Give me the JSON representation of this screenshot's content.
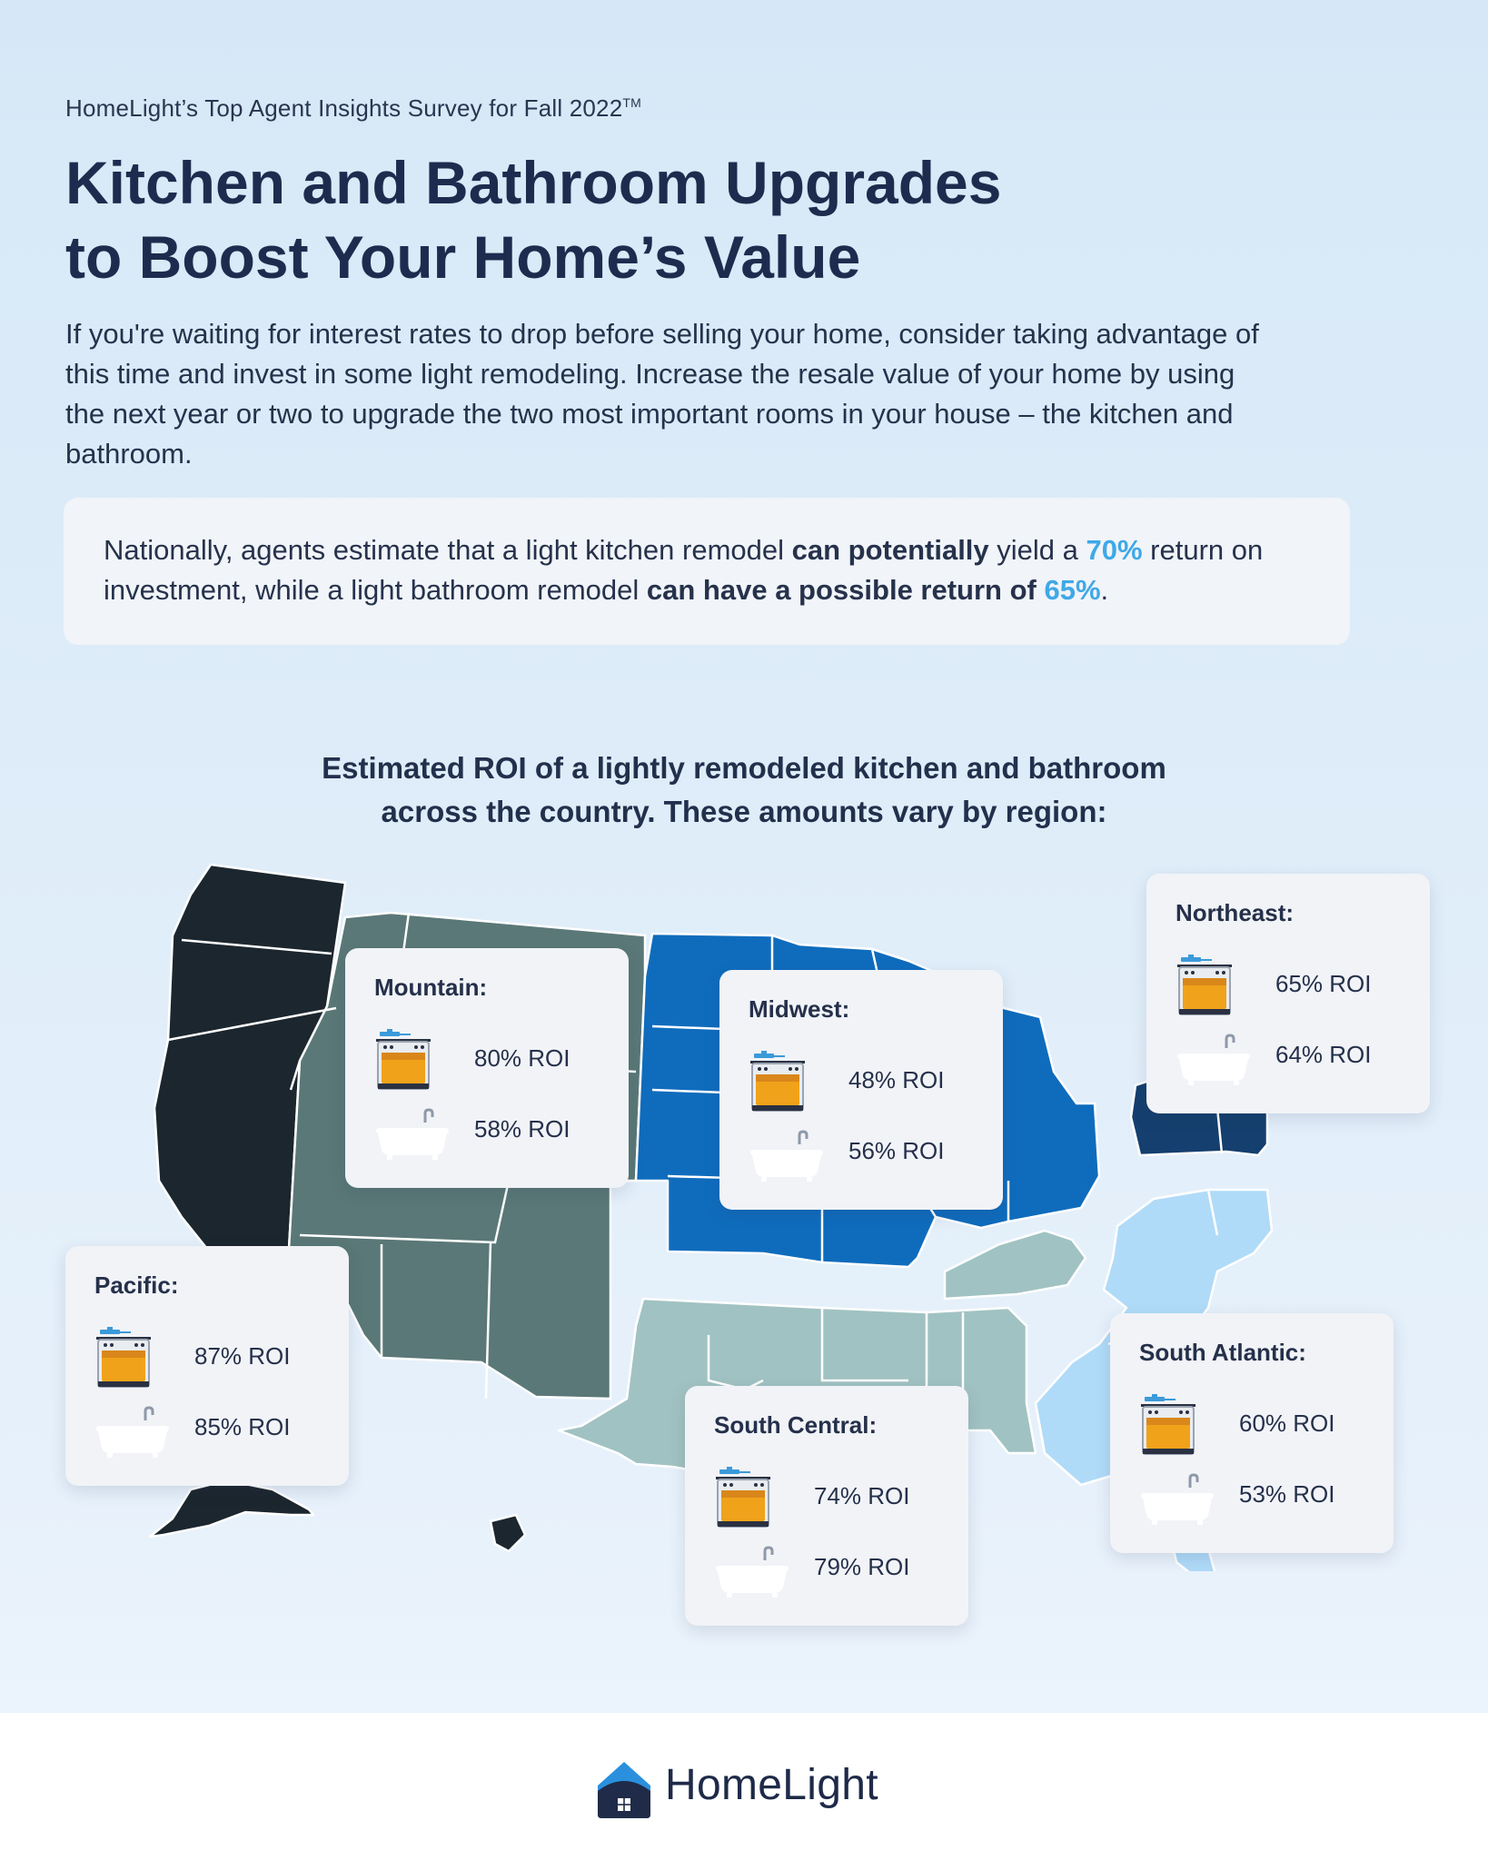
{
  "header": {
    "survey_label": "HomeLight’s Top Agent Insights Survey for Fall 2022",
    "trademark": "TM",
    "title_line1": "Kitchen and Bathroom Upgrades",
    "title_line2": "to Boost Your Home’s Value"
  },
  "intro": {
    "text": "If you're waiting for interest rates to drop before selling your home, consider taking advantage of this time and invest in some light remodeling. Increase the resale value of your home by using the next year or two to upgrade the two most important rooms in your house – the kitchen and bathroom."
  },
  "callout": {
    "part1": "Nationally, agents estimate that a light kitchen remodel ",
    "bold1": "can potentially",
    "part2": " yield a ",
    "pct1": "70%",
    "part3": " return on investment, while a light bathroom remodel ",
    "bold2": "can have a possible return of",
    "part4": " ",
    "pct2": "65%",
    "part5": "."
  },
  "map": {
    "heading_line1": "Estimated ROI of a lightly remodeled kitchen and bathroom",
    "heading_line2": "across the country. These amounts vary by region:",
    "colors": {
      "pacific": "#1c262e",
      "mountain": "#5a7877",
      "midwest": "#0f6cbd",
      "northeast": "#143f6e",
      "south_central": "#a1c2c2",
      "south_atlantic": "#b0dbf8"
    },
    "regions": [
      {
        "name": "Mountain:",
        "kitchen": "80% ROI",
        "bathroom": "58% ROI"
      },
      {
        "name": "Midwest:",
        "kitchen": "48% ROI",
        "bathroom": "56% ROI"
      },
      {
        "name": "Northeast:",
        "kitchen": "65% ROI",
        "bathroom": "64% ROI"
      },
      {
        "name": "Pacific:",
        "kitchen": "87% ROI",
        "bathroom": "85% ROI"
      },
      {
        "name": "South Central:",
        "kitchen": "74% ROI",
        "bathroom": "79% ROI"
      },
      {
        "name": "South Atlantic:",
        "kitchen": "60% ROI",
        "bathroom": "53% ROI"
      }
    ],
    "icons": [
      "oven-icon",
      "bathtub-icon"
    ]
  },
  "footer": {
    "brand": "HomeLight"
  }
}
